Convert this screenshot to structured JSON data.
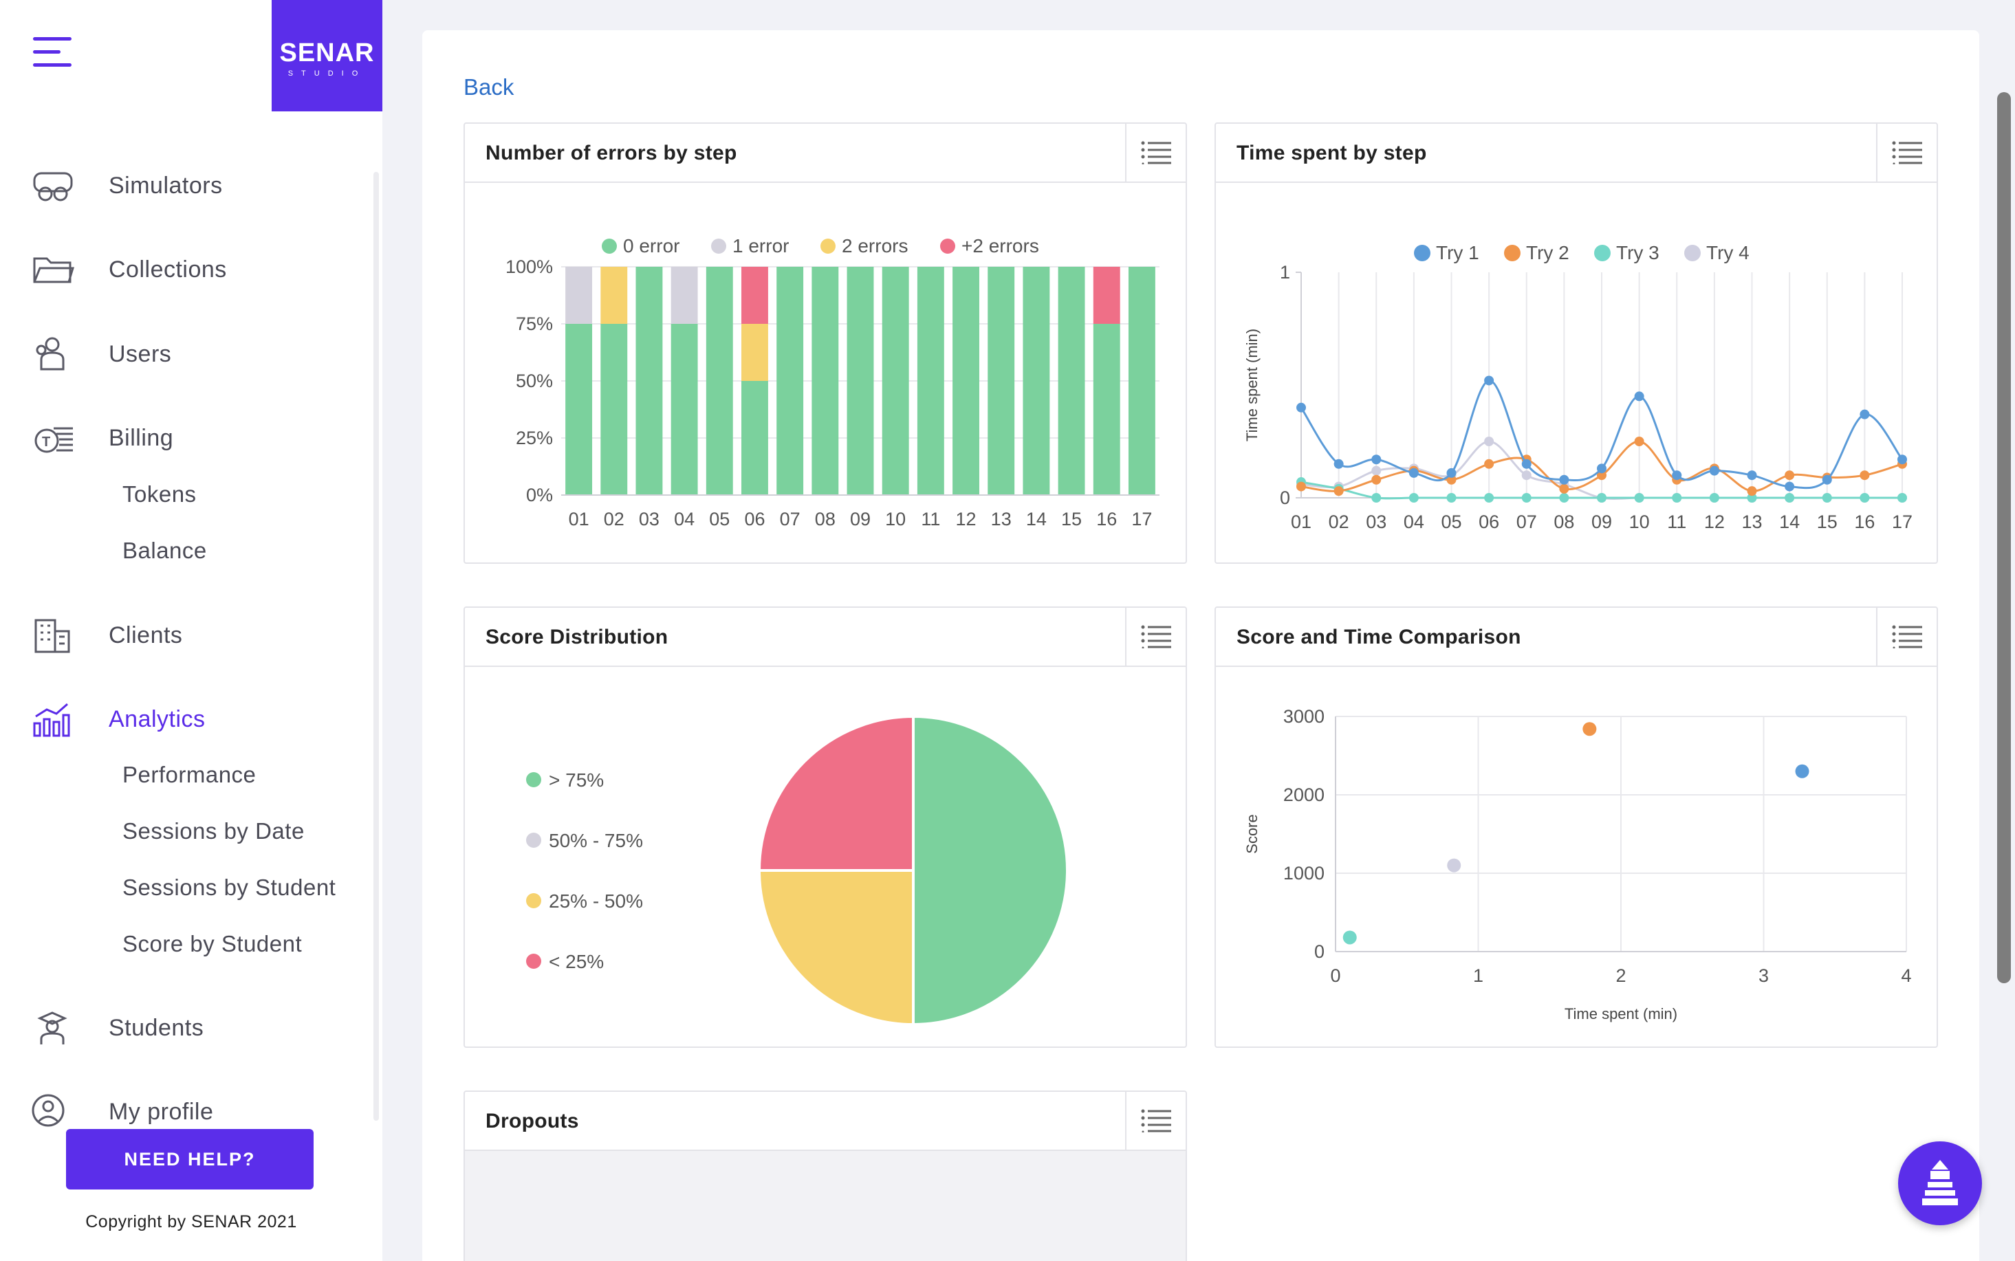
{
  "sidebar": {
    "logo": {
      "brand": "SENAR",
      "sub": "STUDIO"
    },
    "items": [
      {
        "label": "Simulators"
      },
      {
        "label": "Collections"
      },
      {
        "label": "Users"
      },
      {
        "label": "Billing"
      },
      {
        "label": "Clients"
      },
      {
        "label": "Analytics"
      },
      {
        "label": "Students"
      },
      {
        "label": "My profile"
      }
    ],
    "billing_sub": [
      "Tokens",
      "Balance"
    ],
    "analytics_sub": [
      "Performance",
      "Sessions by Date",
      "Sessions by Student",
      "Score by Student"
    ],
    "help_label": "NEED HELP?",
    "copyright": "Copyright by SENAR 2021"
  },
  "main": {
    "back_label": "Back",
    "panels": {
      "errors": {
        "title": "Number of errors by step"
      },
      "time": {
        "title": "Time spent by step"
      },
      "score_dist": {
        "title": "Score Distribution"
      },
      "score_time": {
        "title": "Score and Time Comparison"
      },
      "dropouts": {
        "title": "Dropouts"
      }
    }
  },
  "colors": {
    "accent": "#5b2eea",
    "green": "#7bd19d",
    "grey": "#d4d2dd",
    "yellow": "#f6d26e",
    "red": "#ef6f87",
    "blue": "#5b9bd8",
    "orange": "#f0954a",
    "teal": "#73d7c8",
    "lilac": "#cfcfe0"
  },
  "chart_data": [
    {
      "type": "bar",
      "title": "Number of errors by step",
      "stacked": true,
      "categories": [
        "01",
        "02",
        "03",
        "04",
        "05",
        "06",
        "07",
        "08",
        "09",
        "10",
        "11",
        "12",
        "13",
        "14",
        "15",
        "16",
        "17"
      ],
      "yticks": [
        "0%",
        "25%",
        "50%",
        "75%",
        "100%"
      ],
      "series": [
        {
          "name": "0 error",
          "color": "#7bd19d",
          "values": [
            75,
            75,
            100,
            75,
            100,
            50,
            100,
            100,
            100,
            100,
            100,
            100,
            100,
            100,
            100,
            75,
            100
          ]
        },
        {
          "name": "1 error",
          "color": "#d4d2dd",
          "values": [
            25,
            0,
            0,
            25,
            0,
            0,
            0,
            0,
            0,
            0,
            0,
            0,
            0,
            0,
            0,
            0,
            0
          ]
        },
        {
          "name": "2 errors",
          "color": "#f6d26e",
          "values": [
            0,
            25,
            0,
            0,
            0,
            25,
            0,
            0,
            0,
            0,
            0,
            0,
            0,
            0,
            0,
            0,
            0
          ]
        },
        {
          "name": "+2 errors",
          "color": "#ef6f87",
          "values": [
            0,
            0,
            0,
            0,
            0,
            25,
            0,
            0,
            0,
            0,
            0,
            0,
            0,
            0,
            0,
            25,
            0
          ]
        }
      ]
    },
    {
      "type": "line",
      "title": "Time spent by step",
      "ylabel": "Time spent (min)",
      "ylim": [
        0,
        1
      ],
      "yticks": [
        "0",
        "1"
      ],
      "categories": [
        "01",
        "02",
        "03",
        "04",
        "05",
        "06",
        "07",
        "08",
        "09",
        "10",
        "11",
        "12",
        "13",
        "14",
        "15",
        "16",
        "17"
      ],
      "series": [
        {
          "name": "Try 1",
          "color": "#5b9bd8",
          "values": [
            0.4,
            0.15,
            0.17,
            0.11,
            0.11,
            0.52,
            0.15,
            0.08,
            0.13,
            0.45,
            0.1,
            0.12,
            0.1,
            0.05,
            0.08,
            0.37,
            0.17
          ]
        },
        {
          "name": "Try 2",
          "color": "#f0954a",
          "values": [
            0.05,
            0.03,
            0.08,
            0.12,
            0.08,
            0.15,
            0.17,
            0.04,
            0.1,
            0.25,
            0.08,
            0.13,
            0.03,
            0.1,
            0.09,
            0.1,
            0.15
          ]
        },
        {
          "name": "Try 3",
          "color": "#73d7c8",
          "values": [
            0.07,
            0.04,
            0,
            0,
            0,
            0,
            0,
            0,
            0,
            0,
            0,
            0,
            0,
            0,
            0,
            0,
            0
          ]
        },
        {
          "name": "Try 4",
          "color": "#cfcfe0",
          "values": [
            0.06,
            0.05,
            0.12,
            0.13,
            0.1,
            0.25,
            0.1,
            0.06,
            0,
            0,
            0,
            0,
            0,
            0,
            0,
            0,
            0
          ]
        }
      ]
    },
    {
      "type": "pie",
      "title": "Score Distribution",
      "labels": [
        "> 75%",
        "50% - 75%",
        "25% - 50%",
        "< 25%"
      ],
      "values": [
        50,
        0,
        25,
        25
      ],
      "colors": [
        "#7bd19d",
        "#d4d2dd",
        "#f6d26e",
        "#ef6f87"
      ]
    },
    {
      "type": "scatter",
      "title": "Score and Time Comparison",
      "xlabel": "Time spent (min)",
      "ylabel": "Score",
      "xlim": [
        0,
        4
      ],
      "ylim": [
        0,
        3000
      ],
      "xticks": [
        "0",
        "1",
        "2",
        "3",
        "4"
      ],
      "yticks": [
        "0",
        "1000",
        "2000",
        "3000"
      ],
      "points": [
        {
          "x": 3.27,
          "y": 2300,
          "color": "#5b9bd8"
        },
        {
          "x": 1.78,
          "y": 2840,
          "color": "#f0954a"
        },
        {
          "x": 0.1,
          "y": 180,
          "color": "#73d7c8"
        },
        {
          "x": 0.83,
          "y": 1100,
          "color": "#cfcfe0"
        }
      ]
    }
  ]
}
